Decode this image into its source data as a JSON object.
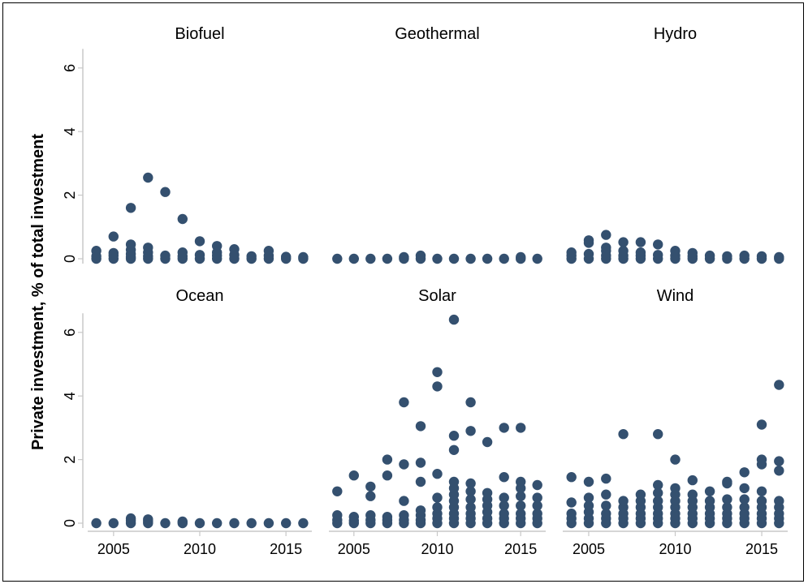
{
  "colors": {
    "marker": "#34506F",
    "axis": "#C8C8C8",
    "text": "#000000"
  },
  "chart_data": {
    "type": "scatter",
    "layout": "small-multiples 2x3",
    "ylabel": "Private investment, % of total investment",
    "xlabel": "",
    "xlim": [
      2003.5,
      2016.5
    ],
    "ylim": [
      0,
      6.6
    ],
    "x_ticks": [
      2005,
      2010,
      2015
    ],
    "y_ticks": [
      0,
      2,
      4,
      6
    ],
    "grid": false,
    "marker_color": "#34506F",
    "panels": [
      {
        "name": "Biofuel",
        "points": [
          [
            2004,
            0
          ],
          [
            2004,
            0.08
          ],
          [
            2004,
            0.25
          ],
          [
            2005,
            0
          ],
          [
            2005,
            0.1
          ],
          [
            2005,
            0.18
          ],
          [
            2005,
            0.7
          ],
          [
            2006,
            0
          ],
          [
            2006,
            0.05
          ],
          [
            2006,
            0.15
          ],
          [
            2006,
            0.28
          ],
          [
            2006,
            0.45
          ],
          [
            2006,
            1.6
          ],
          [
            2007,
            0
          ],
          [
            2007,
            0.08
          ],
          [
            2007,
            0.2
          ],
          [
            2007,
            0.35
          ],
          [
            2007,
            2.55
          ],
          [
            2008,
            0
          ],
          [
            2008,
            0.1
          ],
          [
            2008,
            2.1
          ],
          [
            2009,
            0
          ],
          [
            2009,
            0.08
          ],
          [
            2009,
            0.2
          ],
          [
            2009,
            1.25
          ],
          [
            2010,
            0
          ],
          [
            2010,
            0.12
          ],
          [
            2010,
            0.55
          ],
          [
            2011,
            0
          ],
          [
            2011,
            0.1
          ],
          [
            2011,
            0.2
          ],
          [
            2011,
            0.4
          ],
          [
            2012,
            0
          ],
          [
            2012,
            0.12
          ],
          [
            2012,
            0.3
          ],
          [
            2013,
            0
          ],
          [
            2013,
            0.08
          ],
          [
            2014,
            0
          ],
          [
            2014,
            0.1
          ],
          [
            2014,
            0.25
          ],
          [
            2015,
            0
          ],
          [
            2015,
            0.06
          ],
          [
            2016,
            0
          ],
          [
            2016,
            0.05
          ]
        ]
      },
      {
        "name": "Geothermal",
        "points": [
          [
            2004,
            0
          ],
          [
            2005,
            0
          ],
          [
            2006,
            0
          ],
          [
            2007,
            0
          ],
          [
            2008,
            0
          ],
          [
            2008,
            0.05
          ],
          [
            2009,
            0
          ],
          [
            2009,
            0.1
          ],
          [
            2010,
            0
          ],
          [
            2011,
            0
          ],
          [
            2012,
            0
          ],
          [
            2013,
            0
          ],
          [
            2014,
            0
          ],
          [
            2015,
            0
          ],
          [
            2015,
            0.05
          ],
          [
            2016,
            0
          ]
        ]
      },
      {
        "name": "Hydro",
        "points": [
          [
            2004,
            0
          ],
          [
            2004,
            0.1
          ],
          [
            2004,
            0.2
          ],
          [
            2005,
            0
          ],
          [
            2005,
            0.15
          ],
          [
            2005,
            0.5
          ],
          [
            2005,
            0.58
          ],
          [
            2006,
            0
          ],
          [
            2006,
            0.1
          ],
          [
            2006,
            0.25
          ],
          [
            2006,
            0.35
          ],
          [
            2006,
            0.75
          ],
          [
            2007,
            0
          ],
          [
            2007,
            0.1
          ],
          [
            2007,
            0.25
          ],
          [
            2007,
            0.52
          ],
          [
            2008,
            0
          ],
          [
            2008,
            0.1
          ],
          [
            2008,
            0.2
          ],
          [
            2008,
            0.52
          ],
          [
            2009,
            0
          ],
          [
            2009,
            0.12
          ],
          [
            2009,
            0.45
          ],
          [
            2010,
            0
          ],
          [
            2010,
            0.1
          ],
          [
            2010,
            0.25
          ],
          [
            2011,
            0
          ],
          [
            2011,
            0.08
          ],
          [
            2011,
            0.18
          ],
          [
            2012,
            0
          ],
          [
            2012,
            0.1
          ],
          [
            2013,
            0
          ],
          [
            2013,
            0.08
          ],
          [
            2014,
            0
          ],
          [
            2014,
            0.1
          ],
          [
            2015,
            0
          ],
          [
            2015,
            0.08
          ],
          [
            2016,
            0
          ],
          [
            2016,
            0.05
          ]
        ]
      },
      {
        "name": "Ocean",
        "points": [
          [
            2004,
            0
          ],
          [
            2005,
            0
          ],
          [
            2006,
            0
          ],
          [
            2006,
            0.08
          ],
          [
            2006,
            0.15
          ],
          [
            2007,
            0
          ],
          [
            2007,
            0.06
          ],
          [
            2007,
            0.12
          ],
          [
            2008,
            0
          ],
          [
            2009,
            0
          ],
          [
            2009,
            0.05
          ],
          [
            2010,
            0
          ],
          [
            2011,
            0
          ],
          [
            2012,
            0
          ],
          [
            2013,
            0
          ],
          [
            2014,
            0
          ],
          [
            2015,
            0
          ],
          [
            2016,
            0
          ]
        ]
      },
      {
        "name": "Solar",
        "points": [
          [
            2004,
            0
          ],
          [
            2004,
            0.1
          ],
          [
            2004,
            0.25
          ],
          [
            2004,
            1.0
          ],
          [
            2005,
            0
          ],
          [
            2005,
            0.08
          ],
          [
            2005,
            0.2
          ],
          [
            2005,
            1.5
          ],
          [
            2006,
            0
          ],
          [
            2006,
            0.1
          ],
          [
            2006,
            0.25
          ],
          [
            2006,
            0.85
          ],
          [
            2006,
            1.15
          ],
          [
            2007,
            0
          ],
          [
            2007,
            0.1
          ],
          [
            2007,
            0.2
          ],
          [
            2007,
            1.5
          ],
          [
            2007,
            2.0
          ],
          [
            2008,
            0
          ],
          [
            2008,
            0.1
          ],
          [
            2008,
            0.25
          ],
          [
            2008,
            0.7
          ],
          [
            2008,
            1.85
          ],
          [
            2008,
            3.8
          ],
          [
            2009,
            0
          ],
          [
            2009,
            0.1
          ],
          [
            2009,
            0.25
          ],
          [
            2009,
            0.4
          ],
          [
            2009,
            1.3
          ],
          [
            2009,
            1.9
          ],
          [
            2009,
            3.05
          ],
          [
            2010,
            0
          ],
          [
            2010,
            0.15
          ],
          [
            2010,
            0.3
          ],
          [
            2010,
            0.5
          ],
          [
            2010,
            0.8
          ],
          [
            2010,
            1.55
          ],
          [
            2010,
            4.3
          ],
          [
            2010,
            4.75
          ],
          [
            2011,
            0
          ],
          [
            2011,
            0.15
          ],
          [
            2011,
            0.3
          ],
          [
            2011,
            0.5
          ],
          [
            2011,
            0.7
          ],
          [
            2011,
            0.9
          ],
          [
            2011,
            1.1
          ],
          [
            2011,
            1.3
          ],
          [
            2011,
            2.3
          ],
          [
            2011,
            2.75
          ],
          [
            2011,
            6.4
          ],
          [
            2012,
            0
          ],
          [
            2012,
            0.15
          ],
          [
            2012,
            0.3
          ],
          [
            2012,
            0.5
          ],
          [
            2012,
            0.75
          ],
          [
            2012,
            1.0
          ],
          [
            2012,
            1.25
          ],
          [
            2012,
            2.9
          ],
          [
            2012,
            3.8
          ],
          [
            2013,
            0
          ],
          [
            2013,
            0.15
          ],
          [
            2013,
            0.35
          ],
          [
            2013,
            0.55
          ],
          [
            2013,
            0.75
          ],
          [
            2013,
            0.95
          ],
          [
            2013,
            2.55
          ],
          [
            2014,
            0
          ],
          [
            2014,
            0.15
          ],
          [
            2014,
            0.3
          ],
          [
            2014,
            0.55
          ],
          [
            2014,
            0.8
          ],
          [
            2014,
            1.45
          ],
          [
            2014,
            3.0
          ],
          [
            2015,
            0
          ],
          [
            2015,
            0.15
          ],
          [
            2015,
            0.3
          ],
          [
            2015,
            0.55
          ],
          [
            2015,
            0.85
          ],
          [
            2015,
            1.1
          ],
          [
            2015,
            1.3
          ],
          [
            2015,
            3.0
          ],
          [
            2016,
            0
          ],
          [
            2016,
            0.15
          ],
          [
            2016,
            0.3
          ],
          [
            2016,
            0.55
          ],
          [
            2016,
            0.8
          ],
          [
            2016,
            1.2
          ]
        ]
      },
      {
        "name": "Wind",
        "points": [
          [
            2004,
            0
          ],
          [
            2004,
            0.15
          ],
          [
            2004,
            0.3
          ],
          [
            2004,
            0.65
          ],
          [
            2004,
            1.45
          ],
          [
            2005,
            0
          ],
          [
            2005,
            0.15
          ],
          [
            2005,
            0.35
          ],
          [
            2005,
            0.55
          ],
          [
            2005,
            0.8
          ],
          [
            2005,
            1.3
          ],
          [
            2006,
            0
          ],
          [
            2006,
            0.15
          ],
          [
            2006,
            0.3
          ],
          [
            2006,
            0.55
          ],
          [
            2006,
            0.9
          ],
          [
            2006,
            1.4
          ],
          [
            2007,
            0
          ],
          [
            2007,
            0.15
          ],
          [
            2007,
            0.3
          ],
          [
            2007,
            0.5
          ],
          [
            2007,
            0.7
          ],
          [
            2007,
            2.8
          ],
          [
            2008,
            0
          ],
          [
            2008,
            0.15
          ],
          [
            2008,
            0.3
          ],
          [
            2008,
            0.5
          ],
          [
            2008,
            0.7
          ],
          [
            2008,
            0.9
          ],
          [
            2009,
            0
          ],
          [
            2009,
            0.15
          ],
          [
            2009,
            0.3
          ],
          [
            2009,
            0.5
          ],
          [
            2009,
            0.7
          ],
          [
            2009,
            0.95
          ],
          [
            2009,
            1.2
          ],
          [
            2009,
            2.8
          ],
          [
            2010,
            0
          ],
          [
            2010,
            0.15
          ],
          [
            2010,
            0.3
          ],
          [
            2010,
            0.5
          ],
          [
            2010,
            0.7
          ],
          [
            2010,
            0.9
          ],
          [
            2010,
            1.1
          ],
          [
            2010,
            2.0
          ],
          [
            2011,
            0
          ],
          [
            2011,
            0.15
          ],
          [
            2011,
            0.3
          ],
          [
            2011,
            0.5
          ],
          [
            2011,
            0.7
          ],
          [
            2011,
            0.9
          ],
          [
            2011,
            1.35
          ],
          [
            2012,
            0
          ],
          [
            2012,
            0.15
          ],
          [
            2012,
            0.3
          ],
          [
            2012,
            0.5
          ],
          [
            2012,
            0.7
          ],
          [
            2012,
            1.0
          ],
          [
            2013,
            0
          ],
          [
            2013,
            0.15
          ],
          [
            2013,
            0.3
          ],
          [
            2013,
            0.5
          ],
          [
            2013,
            0.75
          ],
          [
            2013,
            1.25
          ],
          [
            2013,
            1.3
          ],
          [
            2014,
            0
          ],
          [
            2014,
            0.15
          ],
          [
            2014,
            0.3
          ],
          [
            2014,
            0.5
          ],
          [
            2014,
            0.75
          ],
          [
            2014,
            1.1
          ],
          [
            2014,
            1.6
          ],
          [
            2015,
            0
          ],
          [
            2015,
            0.15
          ],
          [
            2015,
            0.3
          ],
          [
            2015,
            0.5
          ],
          [
            2015,
            0.7
          ],
          [
            2015,
            1.0
          ],
          [
            2015,
            1.85
          ],
          [
            2015,
            2.0
          ],
          [
            2015,
            3.1
          ],
          [
            2016,
            0
          ],
          [
            2016,
            0.15
          ],
          [
            2016,
            0.3
          ],
          [
            2016,
            0.5
          ],
          [
            2016,
            0.7
          ],
          [
            2016,
            1.65
          ],
          [
            2016,
            1.95
          ],
          [
            2016,
            4.35
          ]
        ]
      }
    ]
  }
}
